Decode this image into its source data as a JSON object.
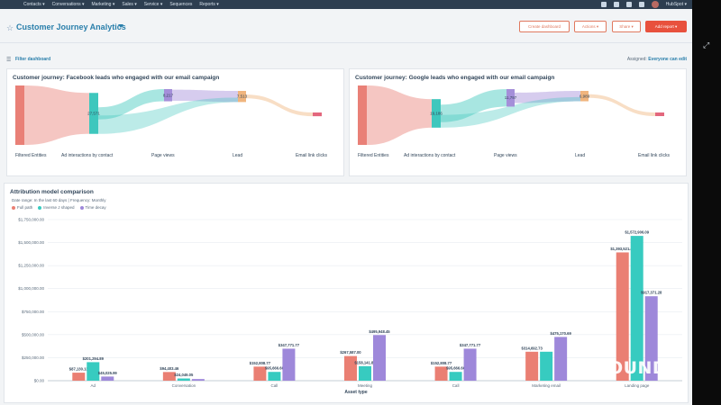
{
  "topnav": {
    "items": [
      "Contacts ▾",
      "Conversations ▾",
      "Marketing ▾",
      "Sales ▾",
      "Service ▾",
      "Sequences",
      "Reports ▾"
    ],
    "account": "HubSpot ▾"
  },
  "header": {
    "title": "Customer Journey Analytics",
    "buttons": {
      "create_dashboard": "Create dashboard",
      "actions": "Actions ▾",
      "share": "Share ▾",
      "add_report": "Add report ▾"
    },
    "filter_label": "Filter dashboard",
    "assigned_label": "Assigned:",
    "assigned_value": "Everyone can edit"
  },
  "colors": {
    "filtered": "#e98077",
    "ad": "#3ec7bd",
    "page_views": "#a48fd9",
    "lead": "#f0b57e",
    "email": "#e3677d",
    "full_path": "#ea7f73",
    "inverse_j": "#37cbc0",
    "time_decay": "#9e88da"
  },
  "funnels": [
    {
      "title": "Customer journey: Facebook leads who engaged with our email campaign",
      "stages": [
        "Filtered Entities",
        "Ad interactions by contact",
        "Page views",
        "Lead",
        "Email link clicks"
      ],
      "node_values": [
        "",
        "27,571",
        "8,217",
        "7,513",
        ""
      ],
      "stage_totals": [
        40000,
        27571,
        8217,
        7513,
        2500
      ]
    },
    {
      "title": "Customer journey: Google leads who engaged with our email campaign",
      "stages": [
        "Filtered Entities",
        "Ad interactions by contact",
        "Page views",
        "Lead",
        "Email link clicks"
      ],
      "node_values": [
        "",
        "19,186",
        "11,797",
        "6,989",
        ""
      ],
      "stage_totals": [
        40000,
        19186,
        11797,
        6989,
        2000
      ]
    }
  ],
  "attribution": {
    "title": "Attribution model comparison",
    "meta": "Date range: In the last 60 days  |  Frequency: Monthly",
    "legend": [
      "Full path",
      "Inverse J shaped",
      "Time decay"
    ]
  },
  "chart_data": {
    "type": "bar",
    "title": "Attribution model comparison",
    "xlabel": "Asset type",
    "ylabel": "",
    "ylim": [
      0,
      1750000
    ],
    "yticks": [
      "$0.00",
      "$250,000.00",
      "$500,000.00",
      "$750,000.00",
      "$1,000,000.00",
      "$1,250,000.00",
      "$1,500,000.00",
      "$1,750,000.00"
    ],
    "categories": [
      "Ad",
      "Conversation",
      "Call",
      "Meeting",
      "Call",
      "Marketing email",
      "Landing page"
    ],
    "series": [
      {
        "name": "Full path",
        "values": [
          87130.13,
          94403.46,
          152808.77,
          267587.0,
          152808.77,
          314692.73,
          1393521.46
        ],
        "labels": [
          "$87,130.13",
          "$94,403.46",
          "$152,808.77",
          "$267,587.00",
          "$152,808.77",
          "$314,692.73",
          "$1,393,521.46"
        ]
      },
      {
        "name": "Inverse J shaped",
        "values": [
          201294.89,
          24049.05,
          95666.6,
          158141.89,
          95666.6,
          314692.73,
          1572906.09
        ],
        "labels": [
          "$201,294.89",
          "$24,049.05",
          "$95,666.60",
          "$158,141.89",
          "$95,666.60",
          "",
          "$1,572,906.09"
        ]
      },
      {
        "name": "Time decay",
        "values": [
          45025.99,
          18000,
          347771.77,
          495948.45,
          347771.77,
          475170.69,
          917371.28
        ],
        "labels": [
          "$45,025.99",
          "",
          "$347,771.77",
          "$495,948.45",
          "$347,771.77",
          "$475,170.69",
          "$917,371.28"
        ]
      }
    ],
    "legend_position": "top-left"
  },
  "watermark": "INBOUND"
}
